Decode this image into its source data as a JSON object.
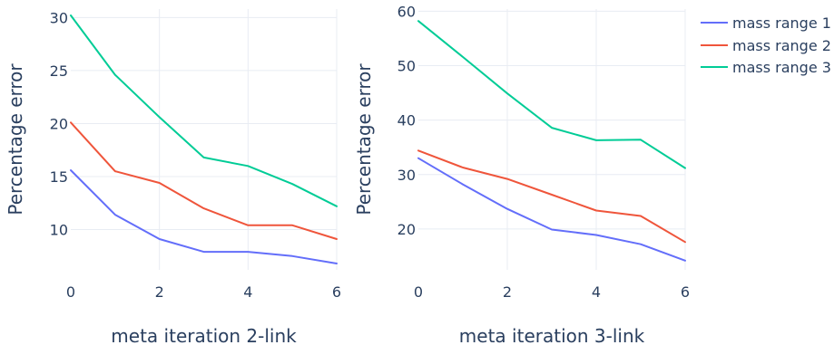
{
  "chart_data": [
    {
      "type": "line",
      "xlabel": "meta iteration 2-link",
      "ylabel": "Percentage error",
      "xlim": [
        0,
        6
      ],
      "ylim": [
        6.2,
        30.8
      ],
      "xticks": [
        0,
        2,
        4,
        6
      ],
      "yticks": [
        10,
        15,
        20,
        25,
        30
      ],
      "grid": true,
      "x": [
        0,
        1,
        2,
        3,
        4,
        5,
        6
      ],
      "series": [
        {
          "name": "mass range 1",
          "color": "#636efa",
          "values": [
            15.6,
            11.4,
            9.1,
            7.9,
            7.9,
            7.5,
            6.8
          ]
        },
        {
          "name": "mass range 2",
          "color": "#ef553b",
          "values": [
            20.1,
            15.5,
            14.4,
            12.0,
            10.4,
            10.4,
            9.1
          ]
        },
        {
          "name": "mass range 3",
          "color": "#00cc96",
          "values": [
            30.2,
            24.6,
            20.6,
            16.8,
            16.0,
            14.3,
            12.2
          ]
        }
      ]
    },
    {
      "type": "line",
      "xlabel": "meta iteration 3-link",
      "ylabel": "Percentage error",
      "xlim": [
        0,
        6
      ],
      "ylim": [
        12.5,
        60.4
      ],
      "xticks": [
        0,
        2,
        4,
        6
      ],
      "yticks": [
        20,
        30,
        40,
        50,
        60
      ],
      "grid": true,
      "x": [
        0,
        1,
        2,
        3,
        4,
        5,
        6
      ],
      "series": [
        {
          "name": "mass range 1",
          "color": "#636efa",
          "values": [
            33.0,
            28.2,
            23.7,
            19.9,
            18.9,
            17.2,
            14.2
          ]
        },
        {
          "name": "mass range 2",
          "color": "#ef553b",
          "values": [
            34.4,
            31.3,
            29.2,
            26.3,
            23.4,
            22.4,
            17.6
          ]
        },
        {
          "name": "mass range 3",
          "color": "#00cc96",
          "values": [
            58.2,
            51.6,
            44.9,
            38.6,
            36.3,
            36.4,
            31.2
          ]
        }
      ]
    }
  ],
  "legend": {
    "position": "top-right",
    "items": [
      {
        "label": "mass range 1",
        "color": "#636efa"
      },
      {
        "label": "mass range 2",
        "color": "#ef553b"
      },
      {
        "label": "mass range 3",
        "color": "#00cc96"
      }
    ]
  }
}
